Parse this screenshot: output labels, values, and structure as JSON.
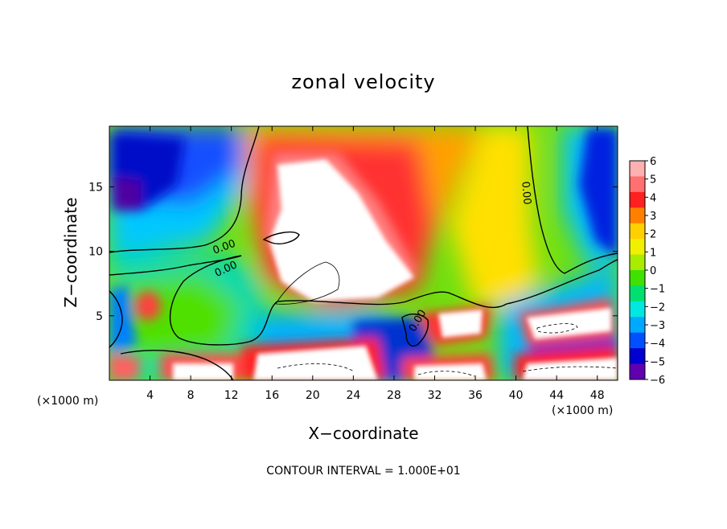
{
  "chart_data": {
    "type": "heatmap",
    "title": "zonal velocity",
    "xlabel": "X−coordinate",
    "ylabel": "Z−coordinate",
    "x_unit_label": "(×1000 m)",
    "contour_note": "CONTOUR INTERVAL = 1.000E+01",
    "xlim": [
      0,
      50
    ],
    "ylim": [
      0,
      19.7
    ],
    "x_ticks": [
      "4",
      "8",
      "12",
      "16",
      "20",
      "24",
      "28",
      "32",
      "36",
      "40",
      "44",
      "48"
    ],
    "y_ticks": [
      "5",
      "10",
      "15"
    ],
    "colorbar": {
      "min": -6,
      "max": 6,
      "tick_labels": [
        "6",
        "5",
        "4",
        "3",
        "2",
        "1",
        "0",
        "−1",
        "−2",
        "−3",
        "−4",
        "−5",
        "−6"
      ],
      "colors": [
        "#ffb0b0",
        "#ff7070",
        "#ff2020",
        "#ff8000",
        "#ffd000",
        "#f0f000",
        "#a8ec00",
        "#40e000",
        "#00e070",
        "#00e8e0",
        "#00a8ff",
        "#0050ff",
        "#0000d0",
        "#6000b0"
      ]
    },
    "contour_labels": [
      {
        "text": "0.00",
        "x": 11.4,
        "z": 10.1
      },
      {
        "text": "0.00",
        "x": 11.6,
        "z": 8.4
      },
      {
        "text": "0.00",
        "x": 40.7,
        "z": 14.5
      },
      {
        "text": "0.00",
        "x": 30.6,
        "z": 4.5
      }
    ],
    "features": [
      {
        "name": "strong positive core",
        "x": 22,
        "z": 11,
        "value": 6.5
      },
      {
        "name": "upper-left negative",
        "x": 2,
        "z": 15,
        "value": -5.5
      },
      {
        "name": "upper-right negative",
        "x": 48.5,
        "z": 15,
        "value": -5.5
      },
      {
        "name": "lower-right positive",
        "x": 44.5,
        "z": 4,
        "value": 6.5
      },
      {
        "name": "surface positive",
        "x": 24,
        "z": 1,
        "value": 6.5
      }
    ]
  }
}
